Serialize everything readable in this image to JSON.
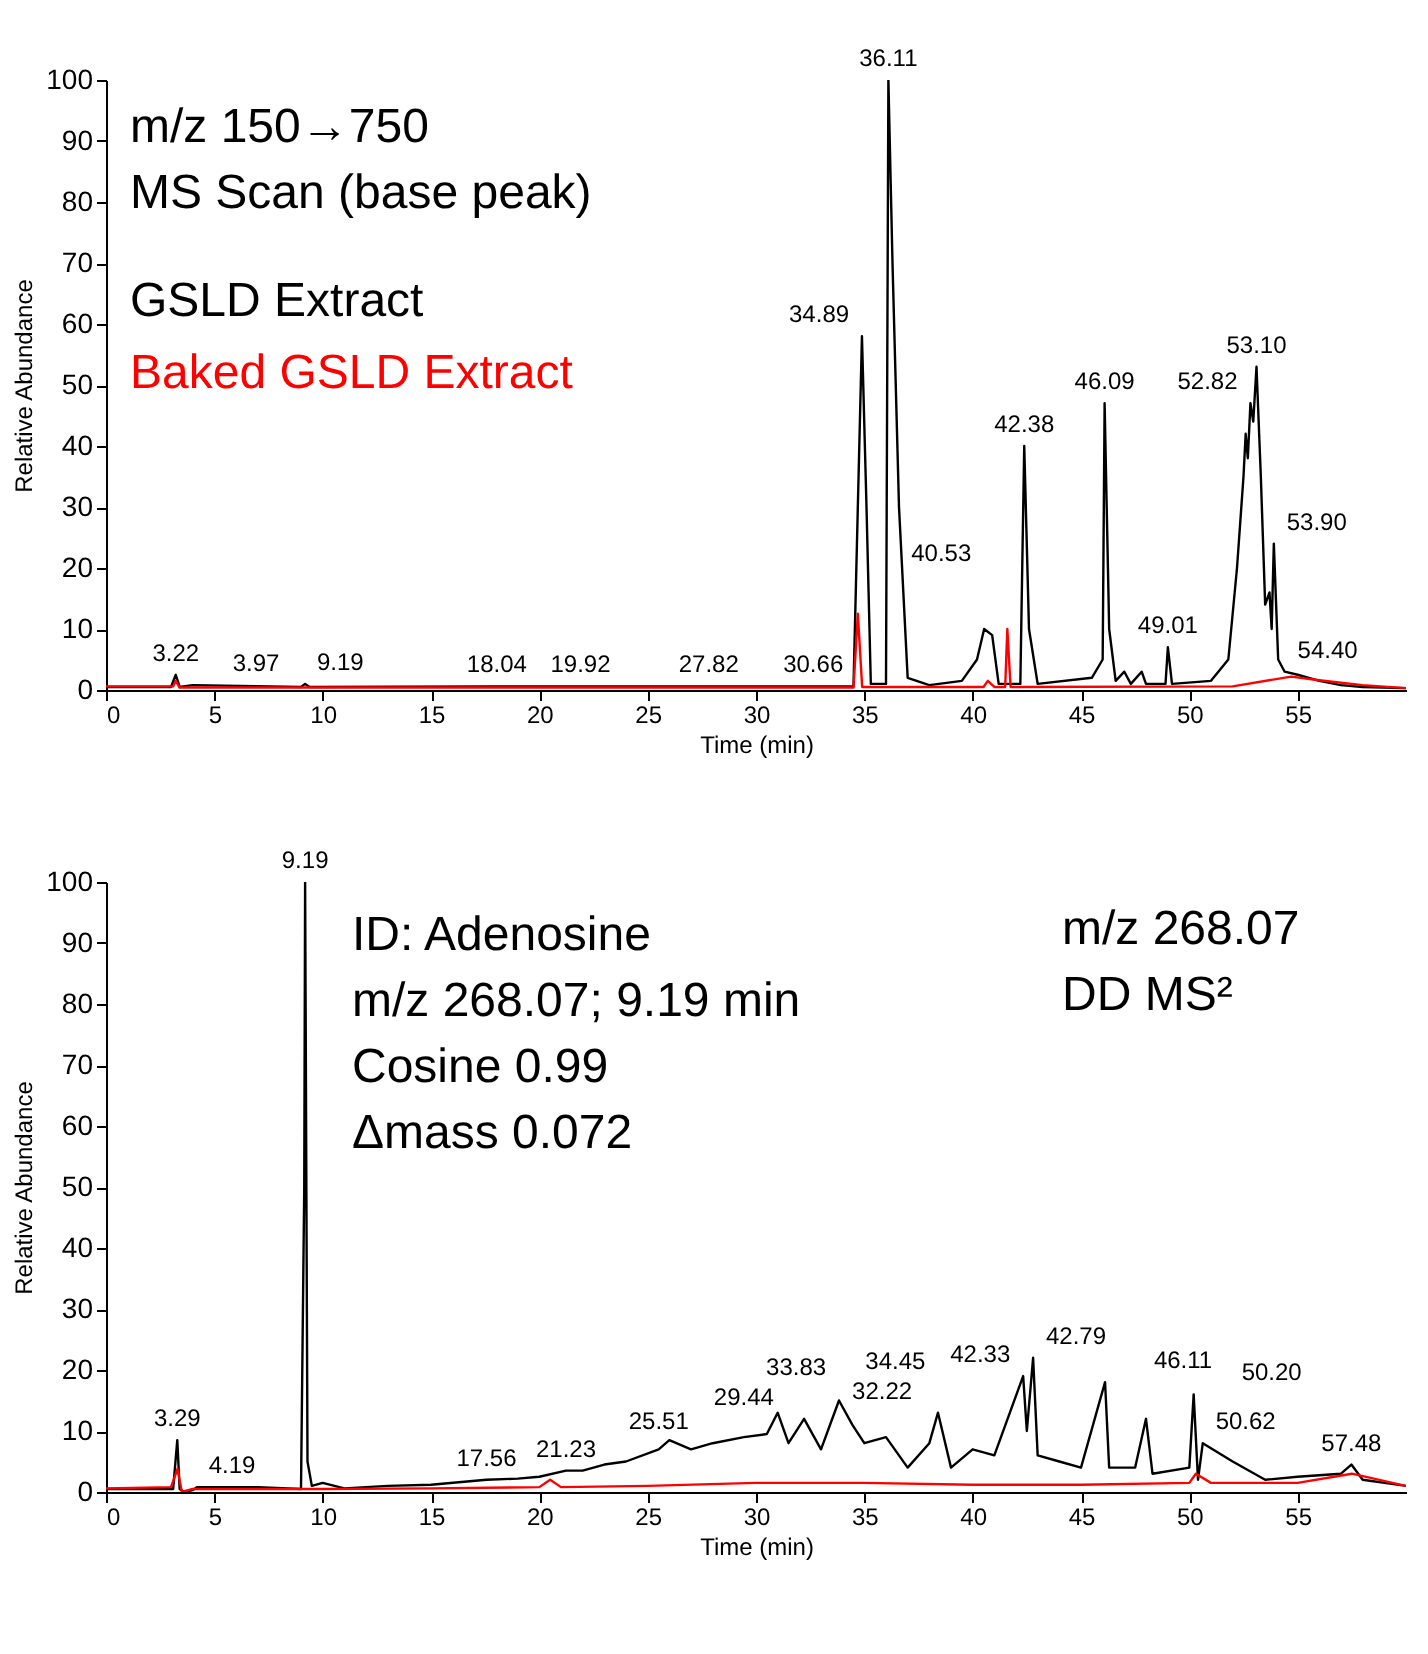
{
  "chart_data": [
    {
      "type": "line",
      "title": "m/z 150→750",
      "subtitle": "MS Scan (base peak)",
      "xlabel": "Time (min)",
      "ylabel": "Relative Abundance",
      "xlim": [
        0,
        60
      ],
      "ylim": [
        0,
        100
      ],
      "xticks": [
        0,
        5,
        10,
        15,
        20,
        25,
        30,
        35,
        40,
        45,
        50,
        55
      ],
      "yticks": [
        0,
        10,
        20,
        30,
        40,
        50,
        60,
        70,
        80,
        90,
        100
      ],
      "grid": false,
      "legend": "top left",
      "series": [
        {
          "name": "GSLD Extract",
          "color": "#000000",
          "x": [
            0,
            3.0,
            3.22,
            3.4,
            4,
            9.0,
            9.19,
            9.4,
            18,
            27.8,
            30.66,
            34.5,
            34.89,
            35.1,
            35.3,
            36.0,
            36.11,
            36.3,
            36.6,
            37,
            38,
            39.5,
            40.2,
            40.53,
            40.9,
            41.2,
            42.2,
            42.38,
            42.6,
            43,
            45.5,
            46.0,
            46.09,
            46.3,
            46.6,
            47,
            47.3,
            47.8,
            48,
            48.9,
            49.01,
            49.2,
            51,
            51.8,
            52.2,
            52.5,
            52.6,
            52.7,
            52.82,
            52.95,
            53.1,
            53.3,
            53.5,
            53.7,
            53.8,
            53.9,
            54.1,
            54.4,
            55,
            56,
            57,
            58,
            60
          ],
          "values": [
            0.5,
            0.5,
            2.5,
            0.5,
            0.8,
            0.5,
            1.0,
            0.5,
            0.6,
            0.6,
            0.6,
            0.6,
            58,
            30,
            1,
            1,
            100,
            70,
            30,
            2,
            0.8,
            1.5,
            5,
            10,
            9,
            1,
            1,
            40,
            10,
            1,
            2,
            5,
            47,
            10,
            1.5,
            3,
            1,
            3,
            1,
            1,
            7,
            1,
            1.5,
            5,
            20,
            35,
            42,
            38,
            47,
            44,
            53,
            35,
            14,
            16,
            10,
            24,
            5,
            3,
            2.5,
            1.5,
            0.8,
            0.5,
            0.3
          ]
        },
        {
          "name": "Baked GSLD Extract",
          "color": "#ff0000",
          "x": [
            0,
            3.1,
            3.22,
            3.4,
            34.5,
            34.7,
            34.9,
            40.5,
            40.7,
            41.0,
            41.5,
            41.6,
            41.75,
            52,
            54.7,
            56,
            58,
            60
          ],
          "values": [
            0.6,
            0.6,
            1.5,
            0.4,
            0.4,
            12.5,
            0.5,
            0.5,
            1.5,
            0.5,
            0.5,
            10,
            0.5,
            0.6,
            2.2,
            1.6,
            0.8,
            0.3
          ]
        }
      ],
      "annotations": [
        {
          "text": "3.22",
          "x": 3.22,
          "y": 2.5
        },
        {
          "text": "3.97",
          "x": 3.97,
          "y": 0.8
        },
        {
          "text": "9.19",
          "x": 9.19,
          "y": 1.0
        },
        {
          "text": "18.04",
          "x": 18.04,
          "y": 0.6
        },
        {
          "text": "19.92",
          "x": 19.92,
          "y": 0.6
        },
        {
          "text": "27.82",
          "x": 27.82,
          "y": 0.6
        },
        {
          "text": "30.66",
          "x": 30.66,
          "y": 0.6
        },
        {
          "text": "34.89",
          "x": 34.89,
          "y": 58
        },
        {
          "text": "36.11",
          "x": 36.11,
          "y": 100
        },
        {
          "text": "40.53",
          "x": 40.53,
          "y": 10
        },
        {
          "text": "42.38",
          "x": 42.38,
          "y": 40
        },
        {
          "text": "46.09",
          "x": 46.09,
          "y": 47
        },
        {
          "text": "49.01",
          "x": 49.01,
          "y": 7
        },
        {
          "text": "52.82",
          "x": 52.82,
          "y": 47
        },
        {
          "text": "53.10",
          "x": 53.1,
          "y": 53
        },
        {
          "text": "53.90",
          "x": 53.9,
          "y": 24
        },
        {
          "text": "54.40",
          "x": 54.4,
          "y": 3
        }
      ]
    },
    {
      "type": "line",
      "title": "m/z 268.07",
      "subtitle": "DD MS²",
      "xlabel": "Time (min)",
      "ylabel": "Relative Abundance",
      "xlim": [
        0,
        60
      ],
      "ylim": [
        0,
        100
      ],
      "xticks": [
        0,
        5,
        10,
        15,
        20,
        25,
        30,
        35,
        40,
        45,
        50,
        55
      ],
      "yticks": [
        0,
        10,
        20,
        30,
        40,
        50,
        60,
        70,
        80,
        90,
        100
      ],
      "grid": false,
      "series": [
        {
          "color": "#000000",
          "x": [
            0,
            3.1,
            3.29,
            3.4,
            3.6,
            4.0,
            4.19,
            7,
            9.0,
            9.15,
            9.19,
            9.3,
            9.5,
            10,
            11,
            13,
            15,
            17.56,
            19,
            20,
            21.23,
            22,
            23,
            24,
            25.51,
            26,
            27,
            28,
            29.44,
            30.5,
            31,
            31.5,
            32.22,
            33,
            33.83,
            34.45,
            35,
            36,
            37,
            38,
            38.4,
            39,
            40,
            41,
            42.33,
            42.5,
            42.79,
            43,
            44,
            45,
            46.11,
            46.3,
            47.5,
            48,
            48.3,
            50,
            50.2,
            50.4,
            50.62,
            52,
            53.5,
            55,
            57,
            57.48,
            58,
            60
          ],
          "values": [
            0.5,
            0.5,
            8.5,
            0.5,
            0,
            0.3,
            0.8,
            0.8,
            0.5,
            50,
            100,
            5,
            1,
            1.5,
            0.6,
            1,
            1.2,
            2,
            2.2,
            2.5,
            3.5,
            3.5,
            4.5,
            5,
            7,
            8.5,
            7,
            8,
            9,
            9.5,
            13,
            8,
            12,
            7,
            15,
            11,
            8,
            9,
            4,
            8,
            13,
            4,
            7,
            6,
            19,
            10,
            22,
            6,
            5,
            4,
            18,
            4,
            4,
            12,
            3,
            4,
            16,
            2,
            8,
            5,
            2,
            2.5,
            3,
            4.5,
            2,
            1
          ]
        },
        {
          "color": "#ff0000",
          "x": [
            0,
            3.0,
            3.3,
            3.5,
            4,
            10,
            15,
            20,
            20.5,
            21,
            25,
            30,
            35,
            40,
            45,
            50,
            50.3,
            51,
            55,
            57.5,
            60
          ],
          "values": [
            0.6,
            0.8,
            3.8,
            0,
            0.5,
            0.5,
            0.6,
            0.8,
            2,
            0.8,
            1,
            1.5,
            1.5,
            1.2,
            1.2,
            1.5,
            3,
            1.5,
            1.5,
            3,
            1
          ]
        }
      ],
      "annotations": [
        "ID: Adenosine",
        "m/z 268.07; 9.19 min",
        "Cosine 0.99",
        "Δmass 0.072",
        {
          "text": "3.29",
          "x": 3.29,
          "y": 8.5
        },
        {
          "text": "4.19",
          "x": 4.19,
          "y": 0.8
        },
        {
          "text": "9.19",
          "x": 9.19,
          "y": 100
        },
        {
          "text": "17.56",
          "x": 17.56,
          "y": 2
        },
        {
          "text": "21.23",
          "x": 21.23,
          "y": 3.5
        },
        {
          "text": "25.51",
          "x": 25.51,
          "y": 7
        },
        {
          "text": "29.44",
          "x": 29.44,
          "y": 9
        },
        {
          "text": "32.22",
          "x": 32.22,
          "y": 12
        },
        {
          "text": "33.83",
          "x": 33.83,
          "y": 15
        },
        {
          "text": "34.45",
          "x": 34.45,
          "y": 11
        },
        {
          "text": "42.33",
          "x": 42.33,
          "y": 19
        },
        {
          "text": "42.79",
          "x": 42.79,
          "y": 22
        },
        {
          "text": "46.11",
          "x": 46.11,
          "y": 18
        },
        {
          "text": "50.20",
          "x": 50.2,
          "y": 16
        },
        {
          "text": "50.62",
          "x": 50.62,
          "y": 8
        },
        {
          "text": "57.48",
          "x": 57.48,
          "y": 4.5
        }
      ]
    }
  ]
}
